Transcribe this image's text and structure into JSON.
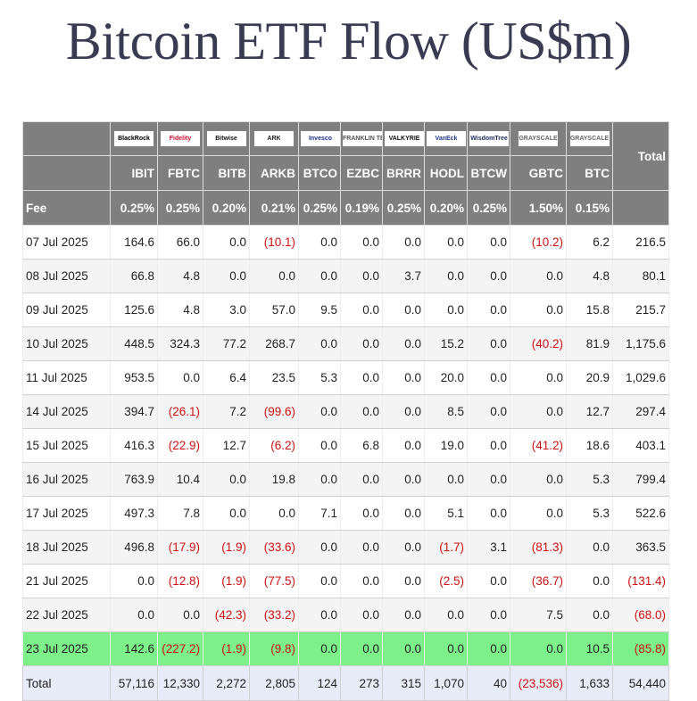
{
  "title": "Bitcoin ETF Flow (US$m)",
  "fee_label": "Fee",
  "total_header": "Total",
  "funds": [
    {
      "ticker": "IBIT",
      "fee": "0.25%",
      "logo": "BlackRock",
      "logo_icon": "blackrock-logo-icon",
      "logo_bg": "#ffffff",
      "logo_fg": "#000000"
    },
    {
      "ticker": "FBTC",
      "fee": "0.25%",
      "logo": "Fidelity",
      "logo_icon": "fidelity-logo-icon",
      "logo_bg": "#ffffff",
      "logo_fg": "#c8102e"
    },
    {
      "ticker": "BITB",
      "fee": "0.20%",
      "logo": "Bitwise",
      "logo_icon": "bitwise-logo-icon",
      "logo_bg": "#ffffff",
      "logo_fg": "#111111"
    },
    {
      "ticker": "ARKB",
      "fee": "0.21%",
      "logo": "ARK",
      "logo_icon": "ark-invest-logo-icon",
      "logo_bg": "#ffffff",
      "logo_fg": "#222222"
    },
    {
      "ticker": "BTCO",
      "fee": "0.25%",
      "logo": "Invesco",
      "logo_icon": "invesco-logo-icon",
      "logo_bg": "#ffffff",
      "logo_fg": "#1c2e8a"
    },
    {
      "ticker": "EZBC",
      "fee": "0.19%",
      "logo": "FRANKLIN TEMPLETON",
      "logo_icon": "franklin-templeton-logo-icon",
      "logo_bg": "#ffffff",
      "logo_fg": "#555555"
    },
    {
      "ticker": "BRRR",
      "fee": "0.25%",
      "logo": "VALKYRIE",
      "logo_icon": "valkyrie-logo-icon",
      "logo_bg": "#ffffff",
      "logo_fg": "#111111"
    },
    {
      "ticker": "HODL",
      "fee": "0.20%",
      "logo": "VanEck",
      "logo_icon": "vaneck-logo-icon",
      "logo_bg": "#ffffff",
      "logo_fg": "#1f3c88"
    },
    {
      "ticker": "BTCW",
      "fee": "0.25%",
      "logo": "WisdomTree",
      "logo_icon": "wisdomtree-logo-icon",
      "logo_bg": "#ffffff",
      "logo_fg": "#1a2b5c"
    },
    {
      "ticker": "GBTC",
      "fee": "1.50%",
      "logo": "GRAYSCALE",
      "logo_icon": "grayscale-logo-icon",
      "logo_bg": "#ffffff",
      "logo_fg": "#666666"
    },
    {
      "ticker": "BTC",
      "fee": "0.15%",
      "logo": "GRAYSCALE",
      "logo_icon": "grayscale-logo-icon",
      "logo_bg": "#ffffff",
      "logo_fg": "#666666"
    }
  ],
  "rows": [
    {
      "date": "07 Jul 2025",
      "values": [
        "164.6",
        "66.0",
        "0.0",
        "(10.1)",
        "0.0",
        "0.0",
        "0.0",
        "0.0",
        "0.0",
        "(10.2)",
        "6.2"
      ],
      "total": "216.5"
    },
    {
      "date": "08 Jul 2025",
      "values": [
        "66.8",
        "4.8",
        "0.0",
        "0.0",
        "0.0",
        "0.0",
        "3.7",
        "0.0",
        "0.0",
        "0.0",
        "4.8"
      ],
      "total": "80.1"
    },
    {
      "date": "09 Jul 2025",
      "values": [
        "125.6",
        "4.8",
        "3.0",
        "57.0",
        "9.5",
        "0.0",
        "0.0",
        "0.0",
        "0.0",
        "0.0",
        "15.8"
      ],
      "total": "215.7"
    },
    {
      "date": "10 Jul 2025",
      "values": [
        "448.5",
        "324.3",
        "77.2",
        "268.7",
        "0.0",
        "0.0",
        "0.0",
        "15.2",
        "0.0",
        "(40.2)",
        "81.9"
      ],
      "total": "1,175.6"
    },
    {
      "date": "11 Jul 2025",
      "values": [
        "953.5",
        "0.0",
        "6.4",
        "23.5",
        "5.3",
        "0.0",
        "0.0",
        "20.0",
        "0.0",
        "0.0",
        "20.9"
      ],
      "total": "1,029.6"
    },
    {
      "date": "14 Jul 2025",
      "values": [
        "394.7",
        "(26.1)",
        "7.2",
        "(99.6)",
        "0.0",
        "0.0",
        "0.0",
        "8.5",
        "0.0",
        "0.0",
        "12.7"
      ],
      "total": "297.4"
    },
    {
      "date": "15 Jul 2025",
      "values": [
        "416.3",
        "(22.9)",
        "12.7",
        "(6.2)",
        "0.0",
        "6.8",
        "0.0",
        "19.0",
        "0.0",
        "(41.2)",
        "18.6"
      ],
      "total": "403.1"
    },
    {
      "date": "16 Jul 2025",
      "values": [
        "763.9",
        "10.4",
        "0.0",
        "19.8",
        "0.0",
        "0.0",
        "0.0",
        "0.0",
        "0.0",
        "0.0",
        "5.3"
      ],
      "total": "799.4"
    },
    {
      "date": "17 Jul 2025",
      "values": [
        "497.3",
        "7.8",
        "0.0",
        "0.0",
        "7.1",
        "0.0",
        "0.0",
        "5.1",
        "0.0",
        "0.0",
        "5.3"
      ],
      "total": "522.6"
    },
    {
      "date": "18 Jul 2025",
      "values": [
        "496.8",
        "(17.9)",
        "(1.9)",
        "(33.6)",
        "0.0",
        "0.0",
        "0.0",
        "(1.7)",
        "3.1",
        "(81.3)",
        "0.0"
      ],
      "total": "363.5"
    },
    {
      "date": "21 Jul 2025",
      "values": [
        "0.0",
        "(12.8)",
        "(1.9)",
        "(77.5)",
        "0.0",
        "0.0",
        "0.0",
        "(2.5)",
        "0.0",
        "(36.7)",
        "0.0"
      ],
      "total": "(131.4)"
    },
    {
      "date": "22 Jul 2025",
      "values": [
        "0.0",
        "0.0",
        "(42.3)",
        "(33.2)",
        "0.0",
        "0.0",
        "0.0",
        "0.0",
        "0.0",
        "7.5",
        "0.0"
      ],
      "total": "(68.0)"
    },
    {
      "date": "23 Jul 2025",
      "values": [
        "142.6",
        "(227.2)",
        "(1.9)",
        "(9.8)",
        "0.0",
        "0.0",
        "0.0",
        "0.0",
        "0.0",
        "0.0",
        "10.5"
      ],
      "total": "(85.8)",
      "highlight": true
    }
  ],
  "totals": {
    "label": "Total",
    "values": [
      "57,116",
      "12,330",
      "2,272",
      "2,805",
      "124",
      "273",
      "315",
      "1,070",
      "40",
      "(23,536)",
      "1,633"
    ],
    "total": "54,440"
  },
  "colors": {
    "header_bg": "#7f7f7f",
    "negative": "#cc1111",
    "highlight": "#7ef08a",
    "total_row_bg": "#e8ecf8",
    "title": "#3a3a52"
  }
}
